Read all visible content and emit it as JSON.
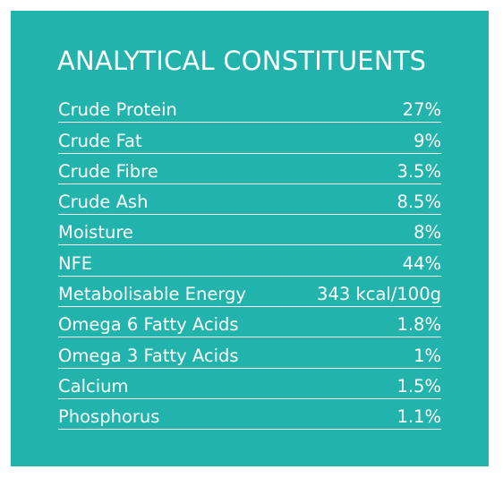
{
  "title": "ANALYTICAL CONSTITUENTS",
  "constituents": [
    {
      "name": "Crude Protein",
      "value": "27%"
    },
    {
      "name": "Crude Fat",
      "value": "9%"
    },
    {
      "name": "Crude Fibre",
      "value": "3.5%"
    },
    {
      "name": "Crude Ash",
      "value": "8.5%"
    },
    {
      "name": "Moisture",
      "value": "8%"
    },
    {
      "name": "NFE",
      "value": "44%"
    },
    {
      "name": "Metabolisable Energy",
      "value": "343 kcal/100g"
    },
    {
      "name": "Omega 6 Fatty Acids",
      "value": "1.8%"
    },
    {
      "name": "Omega 3 Fatty Acids",
      "value": "1%"
    },
    {
      "name": "Calcium",
      "value": "1.5%"
    },
    {
      "name": "Phosphorus",
      "value": "1.1%"
    }
  ],
  "colors": {
    "panel_background": "#22b3ad",
    "text": "#ffffff",
    "rule": "#ffffff"
  }
}
